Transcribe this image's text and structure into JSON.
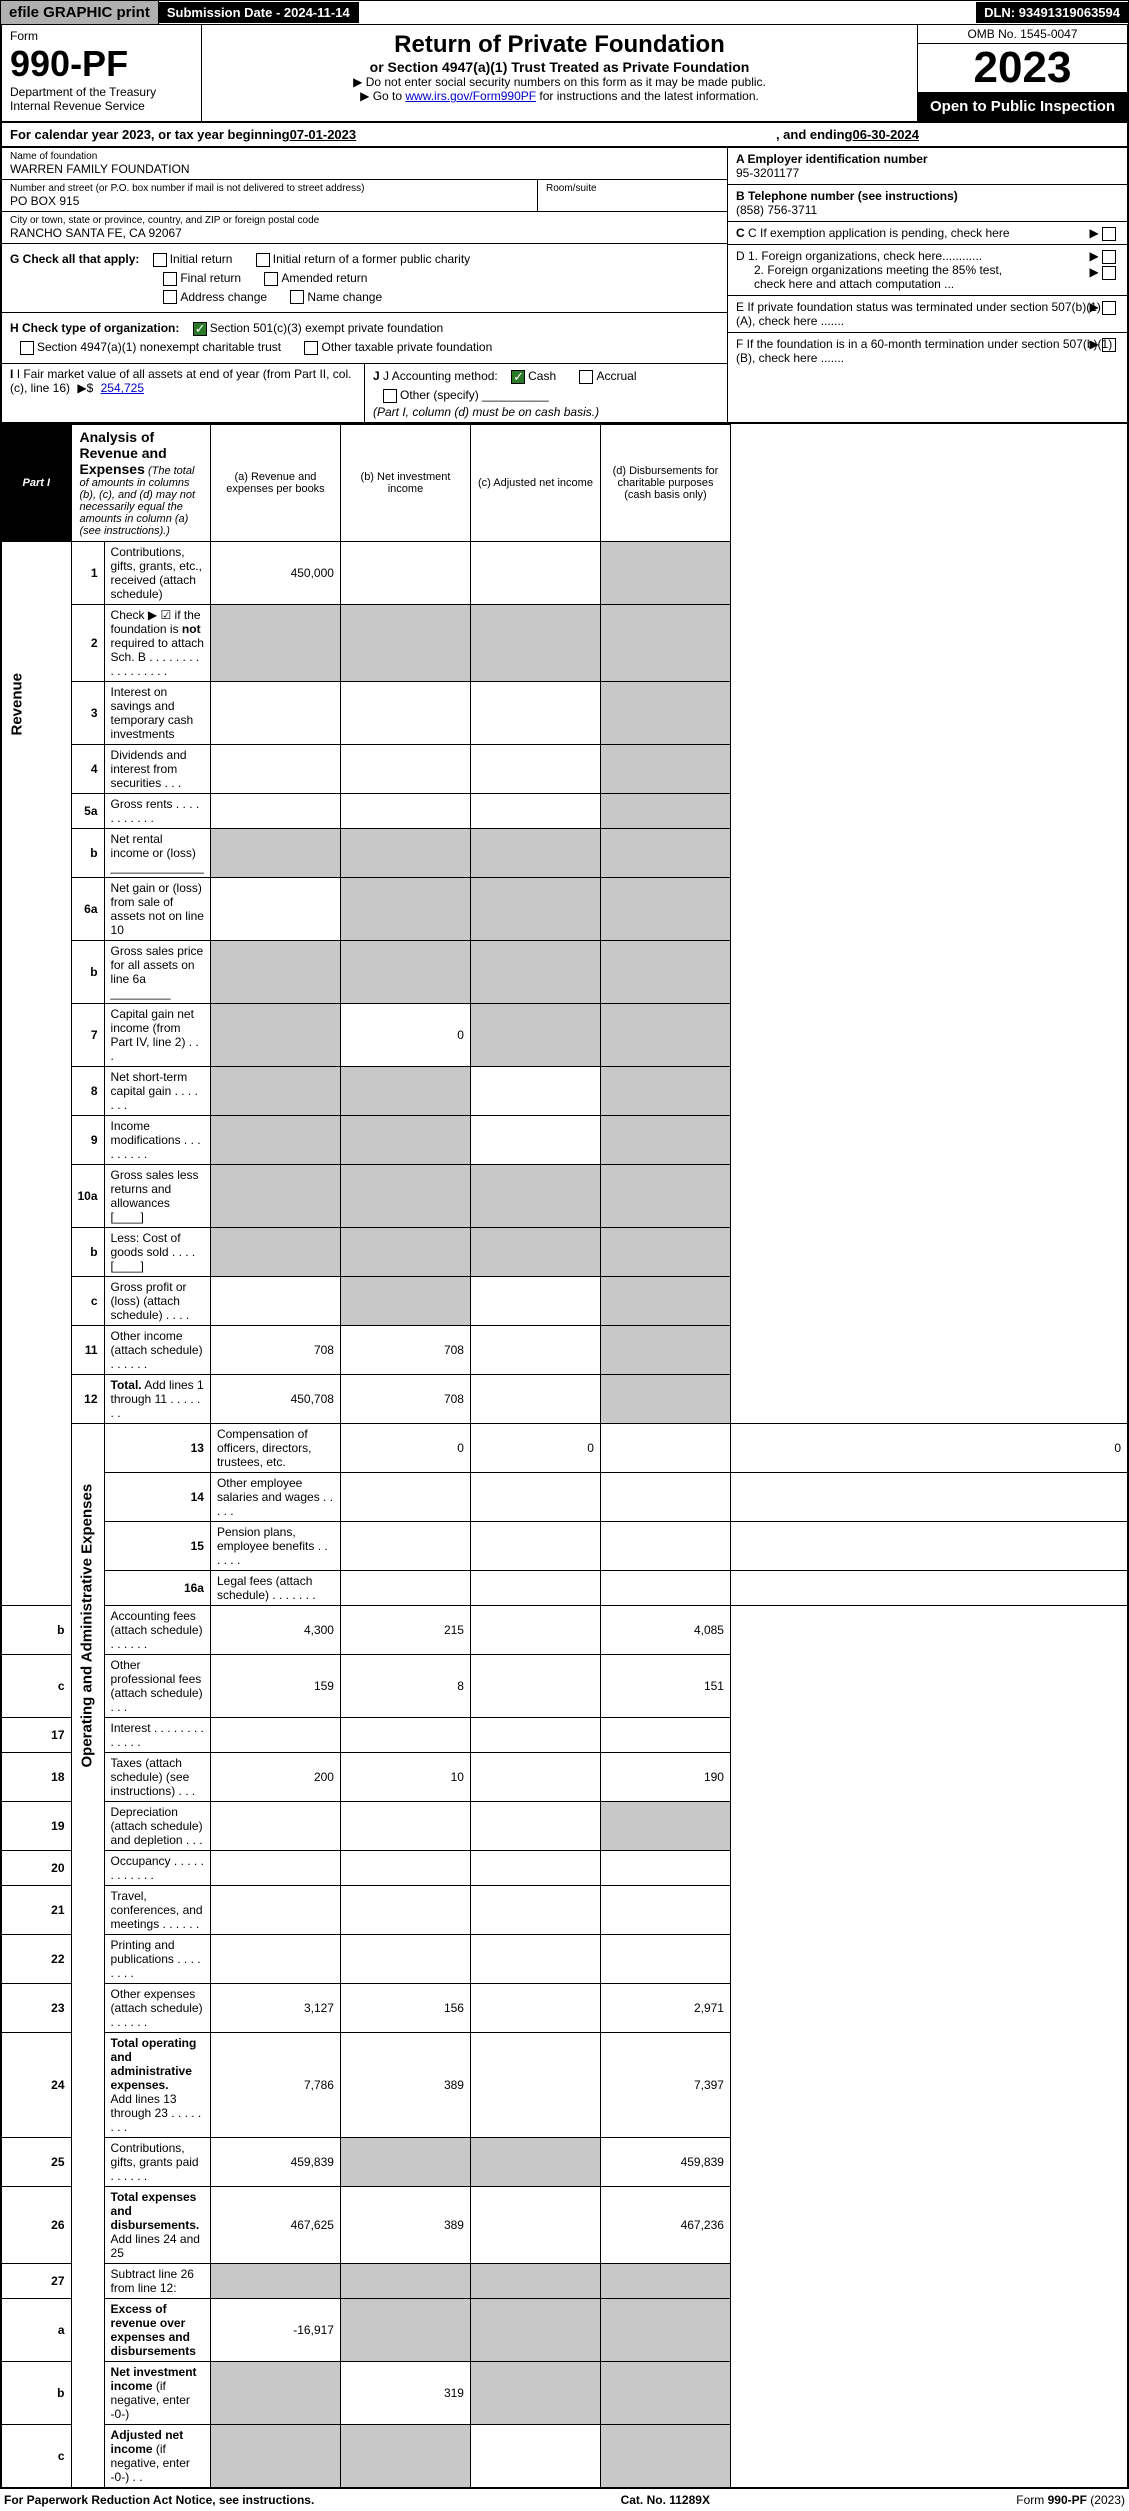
{
  "top": {
    "efile": "efile GRAPHIC print",
    "subdate_lbl": "Submission Date - ",
    "subdate": "2024-11-14",
    "dln_lbl": "DLN: ",
    "dln": "93491319063594"
  },
  "header": {
    "form_word": "Form",
    "form_no": "990-PF",
    "dept": "Department of the Treasury",
    "irs": "Internal Revenue Service",
    "title": "Return of Private Foundation",
    "subtitle": "or Section 4947(a)(1) Trust Treated as Private Foundation",
    "note1_pre": "▶ Do not enter social security numbers on this form as it may be made public.",
    "note2_pre": "▶ Go to ",
    "note2_link": "www.irs.gov/Form990PF",
    "note2_post": " for instructions and the latest information.",
    "omb": "OMB No. 1545-0047",
    "year": "2023",
    "open": "Open to Public Inspection"
  },
  "cal": {
    "pre": "For calendar year 2023, or tax year beginning ",
    "begin": "07-01-2023",
    "mid": ", and ending ",
    "end": "06-30-2024"
  },
  "info": {
    "name_lbl": "Name of foundation",
    "name": "WARREN FAMILY FOUNDATION",
    "addr_lbl": "Number and street (or P.O. box number if mail is not delivered to street address)",
    "addr": "PO BOX 915",
    "room_lbl": "Room/suite",
    "room": "",
    "city_lbl": "City or town, state or province, country, and ZIP or foreign postal code",
    "city": "RANCHO SANTA FE, CA  92067",
    "A_lbl": "A Employer identification number",
    "A": "95-3201177",
    "B_lbl": "B Telephone number (see instructions)",
    "B": "(858) 756-3711",
    "C_lbl": "C If exemption application is pending, check here",
    "G_lbl": "G Check all that apply:",
    "g1": "Initial return",
    "g2": "Initial return of a former public charity",
    "g3": "Final return",
    "g4": "Amended return",
    "g5": "Address change",
    "g6": "Name change",
    "D1": "D 1. Foreign organizations, check here............",
    "D2": "2. Foreign organizations meeting the 85% test, check here and attach computation ...",
    "H_lbl": "H Check type of organization:",
    "h1": "Section 501(c)(3) exempt private foundation",
    "h2": "Section 4947(a)(1) nonexempt charitable trust",
    "h3": "Other taxable private foundation",
    "E_lbl": "E  If private foundation status was terminated under section 507(b)(1)(A), check here .......",
    "I_lbl": "I Fair market value of all assets at end of year (from Part II, col. (c), line 16)",
    "I_val": "254,725",
    "J_lbl": "J Accounting method:",
    "j1": "Cash",
    "j2": "Accrual",
    "j3": "Other (specify)",
    "J_note": "(Part I, column (d) must be on cash basis.)",
    "F_lbl": "F  If the foundation is in a 60-month termination under section 507(b)(1)(B), check here ......."
  },
  "part1": {
    "label": "Part I",
    "title": "Analysis of Revenue and Expenses",
    "note": " (The total of amounts in columns (b), (c), and (d) may not necessarily equal the amounts in column (a) (see instructions).)",
    "col_a": "(a)   Revenue and expenses per books",
    "col_b": "(b)   Net investment income",
    "col_c": "(c)   Adjusted net income",
    "col_d": "(d)  Disbursements for charitable purposes (cash basis only)",
    "rot_rev": "Revenue",
    "rot_exp": "Operating and Administrative Expenses"
  },
  "rows": [
    {
      "ln": "1",
      "desc": "Contributions, gifts, grants, etc., received (attach schedule)",
      "a": "450,000",
      "b": "",
      "c": "",
      "d": "",
      "gray": [
        "d"
      ]
    },
    {
      "ln": "2",
      "desc": "Check ▶ ☑ if the foundation is <b>not</b> required to attach Sch. B    .  .  .  .  .  .  .  .  .  .  .  .  .  .  .  .  .",
      "span": true
    },
    {
      "ln": "3",
      "desc": "Interest on savings and temporary cash investments",
      "a": "",
      "b": "",
      "c": "",
      "d": "",
      "gray": [
        "d"
      ]
    },
    {
      "ln": "4",
      "desc": "Dividends and interest from securities    .    .    .",
      "a": "",
      "b": "",
      "c": "",
      "d": "",
      "gray": [
        "d"
      ]
    },
    {
      "ln": "5a",
      "desc": "Gross rents    .    .    .    .    .    .    .    .    .    .    .",
      "a": "",
      "b": "",
      "c": "",
      "d": "",
      "gray": [
        "d"
      ]
    },
    {
      "ln": "b",
      "desc": "Net rental income or (loss)  ______________",
      "span": true
    },
    {
      "ln": "6a",
      "desc": "Net gain or (loss) from sale of assets not on line 10",
      "a": "",
      "b": "",
      "c": "",
      "d": "",
      "gray": [
        "b",
        "c",
        "d"
      ]
    },
    {
      "ln": "b",
      "desc": "Gross sales price for all assets on line 6a _________",
      "span": true
    },
    {
      "ln": "7",
      "desc": "Capital gain net income (from Part IV, line 2)    .    .    .",
      "a": "",
      "b": "0",
      "c": "",
      "d": "",
      "gray": [
        "a",
        "c",
        "d"
      ]
    },
    {
      "ln": "8",
      "desc": "Net short-term capital gain    .    .    .    .    .    .    .",
      "a": "",
      "b": "",
      "c": "",
      "d": "",
      "gray": [
        "a",
        "b",
        "d"
      ]
    },
    {
      "ln": "9",
      "desc": "Income modifications  .    .    .    .    .    .    .    .    .",
      "a": "",
      "b": "",
      "c": "",
      "d": "",
      "gray": [
        "a",
        "b",
        "d"
      ]
    },
    {
      "ln": "10a",
      "desc": "Gross sales less returns and allowances  [____]",
      "span": true
    },
    {
      "ln": "b",
      "desc": "Less: Cost of goods sold    .    .    .    .   [____]",
      "span": true
    },
    {
      "ln": "c",
      "desc": "Gross profit or (loss) (attach schedule)    .    .    .    .",
      "a": "",
      "b": "",
      "c": "",
      "d": "",
      "gray": [
        "b",
        "d"
      ]
    },
    {
      "ln": "11",
      "desc": "Other income (attach schedule)    .    .    .    .    .    .",
      "a": "708",
      "b": "708",
      "c": "",
      "d": "",
      "gray": [
        "d"
      ]
    },
    {
      "ln": "12",
      "desc": "<b>Total.</b> Add lines 1 through 11    .    .    .    .    .    .    .",
      "a": "450,708",
      "b": "708",
      "c": "",
      "d": "",
      "gray": [
        "d"
      ]
    },
    {
      "ln": "13",
      "desc": "Compensation of officers, directors, trustees, etc.",
      "a": "0",
      "b": "0",
      "c": "",
      "d": "0",
      "sec": "exp"
    },
    {
      "ln": "14",
      "desc": "Other employee salaries and wages    .    .    .    .    .",
      "a": "",
      "b": "",
      "c": "",
      "d": "",
      "sec": "exp"
    },
    {
      "ln": "15",
      "desc": "Pension plans, employee benefits  .    .    .    .    .    .",
      "a": "",
      "b": "",
      "c": "",
      "d": "",
      "sec": "exp"
    },
    {
      "ln": "16a",
      "desc": "Legal fees (attach schedule)  .    .    .    .    .    .    .",
      "a": "",
      "b": "",
      "c": "",
      "d": "",
      "sec": "exp"
    },
    {
      "ln": "b",
      "desc": "Accounting fees (attach schedule)  .    .    .    .    .    .",
      "a": "4,300",
      "b": "215",
      "c": "",
      "d": "4,085",
      "sec": "exp"
    },
    {
      "ln": "c",
      "desc": "Other professional fees (attach schedule)    .    .    .",
      "a": "159",
      "b": "8",
      "c": "",
      "d": "151",
      "sec": "exp"
    },
    {
      "ln": "17",
      "desc": "Interest  .    .    .    .    .    .    .    .    .    .    .    .    .",
      "a": "",
      "b": "",
      "c": "",
      "d": "",
      "sec": "exp"
    },
    {
      "ln": "18",
      "desc": "Taxes (attach schedule) (see instructions)    .    .    .",
      "a": "200",
      "b": "10",
      "c": "",
      "d": "190",
      "sec": "exp"
    },
    {
      "ln": "19",
      "desc": "Depreciation (attach schedule) and depletion    .    .    .",
      "a": "",
      "b": "",
      "c": "",
      "d": "",
      "gray": [
        "d"
      ],
      "sec": "exp"
    },
    {
      "ln": "20",
      "desc": "Occupancy  .    .    .    .    .    .    .    .    .    .    .    .",
      "a": "",
      "b": "",
      "c": "",
      "d": "",
      "sec": "exp"
    },
    {
      "ln": "21",
      "desc": "Travel, conferences, and meetings  .    .    .    .    .    .",
      "a": "",
      "b": "",
      "c": "",
      "d": "",
      "sec": "exp"
    },
    {
      "ln": "22",
      "desc": "Printing and publications  .    .    .    .    .    .    .    .",
      "a": "",
      "b": "",
      "c": "",
      "d": "",
      "sec": "exp"
    },
    {
      "ln": "23",
      "desc": "Other expenses (attach schedule)  .    .    .    .    .    .",
      "a": "3,127",
      "b": "156",
      "c": "",
      "d": "2,971",
      "sec": "exp"
    },
    {
      "ln": "24",
      "desc": "<b>Total operating and administrative expenses.</b><br>Add lines 13 through 23    .    .    .    .    .    .    .    .",
      "a": "7,786",
      "b": "389",
      "c": "",
      "d": "7,397",
      "sec": "exp"
    },
    {
      "ln": "25",
      "desc": "Contributions, gifts, grants paid    .    .    .    .    .    .",
      "a": "459,839",
      "b": "",
      "c": "",
      "d": "459,839",
      "gray": [
        "b",
        "c"
      ],
      "sec": "exp"
    },
    {
      "ln": "26",
      "desc": "<b>Total expenses and disbursements.</b> Add lines 24 and 25",
      "a": "467,625",
      "b": "389",
      "c": "",
      "d": "467,236",
      "sec": "exp"
    },
    {
      "ln": "27",
      "desc": "Subtract line 26 from line 12:",
      "span": true,
      "gray": [
        "a",
        "b",
        "c",
        "d"
      ]
    },
    {
      "ln": "a",
      "desc": "<b>Excess of revenue over expenses and disbursements</b>",
      "a": "-16,917",
      "b": "",
      "c": "",
      "d": "",
      "gray": [
        "b",
        "c",
        "d"
      ]
    },
    {
      "ln": "b",
      "desc": "<b>Net investment income</b> (if negative, enter -0-)",
      "a": "",
      "b": "319",
      "c": "",
      "d": "",
      "gray": [
        "a",
        "c",
        "d"
      ]
    },
    {
      "ln": "c",
      "desc": "<b>Adjusted net income</b> (if negative, enter -0-)    .    .",
      "a": "",
      "b": "",
      "c": "",
      "d": "",
      "gray": [
        "a",
        "b",
        "d"
      ]
    }
  ],
  "footer": {
    "left": "For Paperwork Reduction Act Notice, see instructions.",
    "mid": "Cat. No. 11289X",
    "right": "Form 990-PF (2023)"
  }
}
